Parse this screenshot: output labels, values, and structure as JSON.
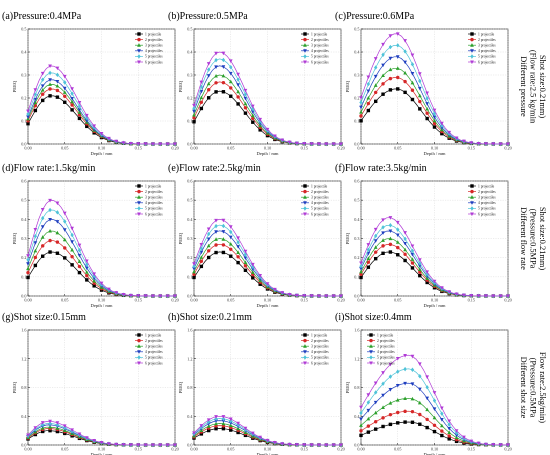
{
  "figure": {
    "row_labels": [
      [
        "Different pressure",
        "(Flow rate:2.5 kg/min",
        "Shot size:0.21mm)"
      ],
      [
        "Different flow rate",
        "(Pressure:0.5MPa",
        "Shot size:0.21mm)"
      ],
      [
        "Different shot size",
        "(Pressure:0.5MPa",
        "Flow rate:2.5kg/min)"
      ]
    ]
  },
  "chart_data": [
    {
      "type": "line",
      "title": "(a)Pressure:0.4MPa",
      "xlabel": "Depth / mm",
      "ylabel": "PEEQ",
      "xlim": [
        0,
        0.2
      ],
      "ylim": [
        0,
        0.5
      ],
      "xticks": [
        "0.00",
        "0.05",
        "0.10",
        "0.15",
        "0.20"
      ],
      "yticks": [
        "0.0",
        "0.1",
        "0.2",
        "0.3",
        "0.4",
        "0.5"
      ],
      "grid": true,
      "legend": "top-right",
      "peak": 0.34,
      "peak_x": 0.032,
      "series": [
        {
          "name": "1 projectile",
          "peak": 0.21
        },
        {
          "name": "2 projectiles",
          "peak": 0.24
        },
        {
          "name": "3 projectiles",
          "peak": 0.26
        },
        {
          "name": "4 projectiles",
          "peak": 0.28
        },
        {
          "name": "5 projectiles",
          "peak": 0.31
        },
        {
          "name": "6 projectiles",
          "peak": 0.34
        }
      ]
    },
    {
      "type": "line",
      "title": "(b)Pressure:0.5MPa",
      "xlabel": "Depth / mm",
      "ylabel": "PEEQ",
      "xlim": [
        0,
        0.2
      ],
      "ylim": [
        0,
        0.5
      ],
      "xticks": [
        "0.00",
        "0.05",
        "0.10",
        "0.15",
        "0.20"
      ],
      "yticks": [
        "0.0",
        "0.1",
        "0.2",
        "0.3",
        "0.4",
        "0.5"
      ],
      "grid": true,
      "legend": "top-right",
      "peak_x": 0.035,
      "series": [
        {
          "name": "1 projectile",
          "peak": 0.23
        },
        {
          "name": "2 projectiles",
          "peak": 0.27
        },
        {
          "name": "3 projectiles",
          "peak": 0.3
        },
        {
          "name": "4 projectiles",
          "peak": 0.34
        },
        {
          "name": "5 projectiles",
          "peak": 0.37
        },
        {
          "name": "6 projectiles",
          "peak": 0.4
        }
      ]
    },
    {
      "type": "line",
      "title": "(c)Pressure:0.6MPa",
      "xlabel": "Depth / mm",
      "ylabel": "PEEQ",
      "xlim": [
        0,
        0.2
      ],
      "ylim": [
        0,
        0.5
      ],
      "xticks": [
        "0.00",
        "0.05",
        "0.10",
        "0.15",
        "0.20"
      ],
      "yticks": [
        "0.0",
        "0.1",
        "0.2",
        "0.3",
        "0.4",
        "0.5"
      ],
      "grid": true,
      "legend": "top-right",
      "peak_x": 0.048,
      "series": [
        {
          "name": "1 projectile",
          "peak": 0.24
        },
        {
          "name": "2 projectiles",
          "peak": 0.29
        },
        {
          "name": "3 projectiles",
          "peak": 0.33
        },
        {
          "name": "4 projectiles",
          "peak": 0.38
        },
        {
          "name": "5 projectiles",
          "peak": 0.43
        },
        {
          "name": "6 projectiles",
          "peak": 0.48
        }
      ]
    },
    {
      "type": "line",
      "title": "(d)Flow rate:1.5kg/min",
      "xlabel": "Depth / mm",
      "ylabel": "PEEQ",
      "xlim": [
        0,
        0.2
      ],
      "ylim": [
        0,
        0.6
      ],
      "xticks": [
        "0.00",
        "0.05",
        "0.10",
        "0.15",
        "0.20"
      ],
      "yticks": [
        "0.0",
        "0.1",
        "0.2",
        "0.3",
        "0.4",
        "0.5",
        "0.6"
      ],
      "grid": true,
      "legend": "top-right",
      "peak_x": 0.032,
      "series": [
        {
          "name": "1 projectile",
          "peak": 0.23
        },
        {
          "name": "2 projectiles",
          "peak": 0.29
        },
        {
          "name": "3 projectiles",
          "peak": 0.34
        },
        {
          "name": "4 projectiles",
          "peak": 0.4
        },
        {
          "name": "5 projectiles",
          "peak": 0.45
        },
        {
          "name": "6 projectiles",
          "peak": 0.5
        }
      ]
    },
    {
      "type": "line",
      "title": "(e)Flow rate:2.5kg/min",
      "xlabel": "Depth / mm",
      "ylabel": "PEEQ",
      "xlim": [
        0,
        0.2
      ],
      "ylim": [
        0,
        0.6
      ],
      "xticks": [
        "0.00",
        "0.05",
        "0.10",
        "0.15",
        "0.20"
      ],
      "yticks": [
        "0.0",
        "0.1",
        "0.2",
        "0.3",
        "0.4",
        "0.5",
        "0.6"
      ],
      "grid": true,
      "legend": "top-right",
      "peak_x": 0.035,
      "series": [
        {
          "name": "1 projectile",
          "peak": 0.23
        },
        {
          "name": "2 projectiles",
          "peak": 0.27
        },
        {
          "name": "3 projectiles",
          "peak": 0.3
        },
        {
          "name": "4 projectiles",
          "peak": 0.34
        },
        {
          "name": "5 projectiles",
          "peak": 0.37
        },
        {
          "name": "6 projectiles",
          "peak": 0.4
        }
      ]
    },
    {
      "type": "line",
      "title": "(f)Flow rate:3.5kg/min",
      "xlabel": "Depth / mm",
      "ylabel": "PEEQ",
      "xlim": [
        0,
        0.2
      ],
      "ylim": [
        0,
        0.6
      ],
      "xticks": [
        "0.00",
        "0.05",
        "0.10",
        "0.15",
        "0.20"
      ],
      "yticks": [
        "0.0",
        "0.1",
        "0.2",
        "0.3",
        "0.4",
        "0.5",
        "0.6"
      ],
      "grid": true,
      "legend": "top-right",
      "peak_x": 0.038,
      "series": [
        {
          "name": "1 projectile",
          "peak": 0.23
        },
        {
          "name": "2 projectiles",
          "peak": 0.27
        },
        {
          "name": "3 projectiles",
          "peak": 0.3
        },
        {
          "name": "4 projectiles",
          "peak": 0.34
        },
        {
          "name": "5 projectiles",
          "peak": 0.37
        },
        {
          "name": "6 projectiles",
          "peak": 0.41
        }
      ]
    },
    {
      "type": "line",
      "title": "(g)Shot size:0.15mm",
      "xlabel": "Depth / mm",
      "ylabel": "PEEQ",
      "xlim": [
        0,
        0.2
      ],
      "ylim": [
        0,
        1.6
      ],
      "xticks": [
        "0.00",
        "0.05",
        "0.10",
        "0.15",
        "0.20"
      ],
      "yticks": [
        "0.0",
        "0.4",
        "0.8",
        "1.2",
        "1.6"
      ],
      "grid": true,
      "legend": "top-right",
      "peak_x": 0.028,
      "series": [
        {
          "name": "1 projectile",
          "peak": 0.2
        },
        {
          "name": "2 projectiles",
          "peak": 0.23
        },
        {
          "name": "3 projectiles",
          "peak": 0.25
        },
        {
          "name": "4 projectiles",
          "peak": 0.28
        },
        {
          "name": "5 projectiles",
          "peak": 0.3
        },
        {
          "name": "6 projectiles",
          "peak": 0.33
        }
      ]
    },
    {
      "type": "line",
      "title": "(h)Shot size:0.21mm",
      "xlabel": "Depth / mm",
      "ylabel": "PEEQ",
      "xlim": [
        0,
        0.2
      ],
      "ylim": [
        0,
        1.6
      ],
      "xticks": [
        "0.00",
        "0.05",
        "0.10",
        "0.15",
        "0.20"
      ],
      "yticks": [
        "0.0",
        "0.4",
        "0.8",
        "1.2",
        "1.6"
      ],
      "grid": true,
      "legend": "top-right",
      "peak_x": 0.035,
      "series": [
        {
          "name": "1 projectile",
          "peak": 0.23
        },
        {
          "name": "2 projectiles",
          "peak": 0.27
        },
        {
          "name": "3 projectiles",
          "peak": 0.3
        },
        {
          "name": "4 projectiles",
          "peak": 0.34
        },
        {
          "name": "5 projectiles",
          "peak": 0.37
        },
        {
          "name": "6 projectiles",
          "peak": 0.4
        }
      ]
    },
    {
      "type": "line",
      "title": "(i)Shot size:0.4mm",
      "xlabel": "Depth / mm",
      "ylabel": "PEEQ",
      "xlim": [
        0,
        0.2
      ],
      "ylim": [
        0,
        1.6
      ],
      "xticks": [
        "0.00",
        "0.05",
        "0.10",
        "0.15",
        "0.20"
      ],
      "yticks": [
        "0.0",
        "0.4",
        "0.8",
        "1.2",
        "1.6"
      ],
      "grid": true,
      "legend": "top-left",
      "peak_x": 0.065,
      "series": [
        {
          "name": "1 projectile",
          "peak": 0.32
        },
        {
          "name": "2 projectiles",
          "peak": 0.47
        },
        {
          "name": "3 projectiles",
          "peak": 0.65
        },
        {
          "name": "4 projectiles",
          "peak": 0.86
        },
        {
          "name": "5 projectiles",
          "peak": 1.06
        },
        {
          "name": "6 projectiles",
          "peak": 1.25
        }
      ]
    }
  ],
  "series_colors": [
    "#000000",
    "#d62728",
    "#2ca02c",
    "#1f3fbf",
    "#4fc3d8",
    "#b03ad6"
  ],
  "series_markers": [
    "square",
    "circle",
    "triangle-up",
    "triangle-down",
    "diamond",
    "triangle-down"
  ]
}
